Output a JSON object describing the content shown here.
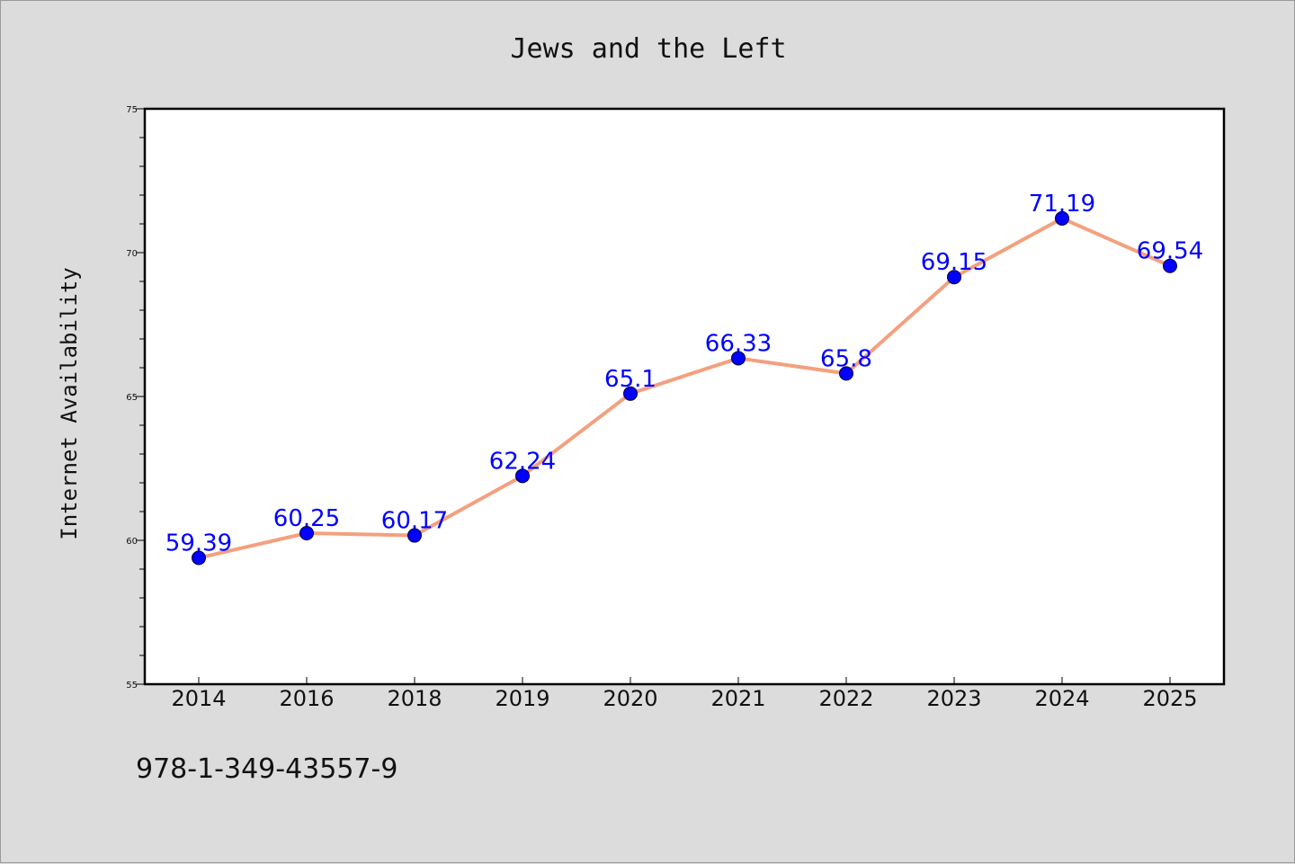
{
  "colors": {
    "background": "#dcdcdc",
    "plot_background": "#ffffff",
    "line": "#f4a07e",
    "marker": "#0000ff",
    "label": "#0000ff"
  },
  "footer": {
    "isbn": "978-1-349-43557-9"
  },
  "chart_data": {
    "type": "line",
    "title": "Jews and the Left",
    "xlabel": "",
    "ylabel": "Internet Availability",
    "categories": [
      "2014",
      "2016",
      "2018",
      "2019",
      "2020",
      "2021",
      "2022",
      "2023",
      "2024",
      "2025"
    ],
    "series": [
      {
        "values": [
          59.39,
          60.25,
          60.17,
          62.24,
          65.1,
          66.33,
          65.8,
          69.15,
          71.19,
          69.54
        ],
        "value_labels": [
          "59.39",
          "60.25",
          "60.17",
          "62.24",
          "65.1",
          "66.33",
          "65.8",
          "69.15",
          "71.19",
          "69.54"
        ]
      }
    ],
    "ylim": [
      55,
      75
    ],
    "yticks": [
      55,
      60,
      65,
      70,
      75
    ],
    "ytick_labels": [
      "55",
      "60",
      "65",
      "70",
      "75"
    ],
    "grid": false,
    "legend": "none"
  }
}
